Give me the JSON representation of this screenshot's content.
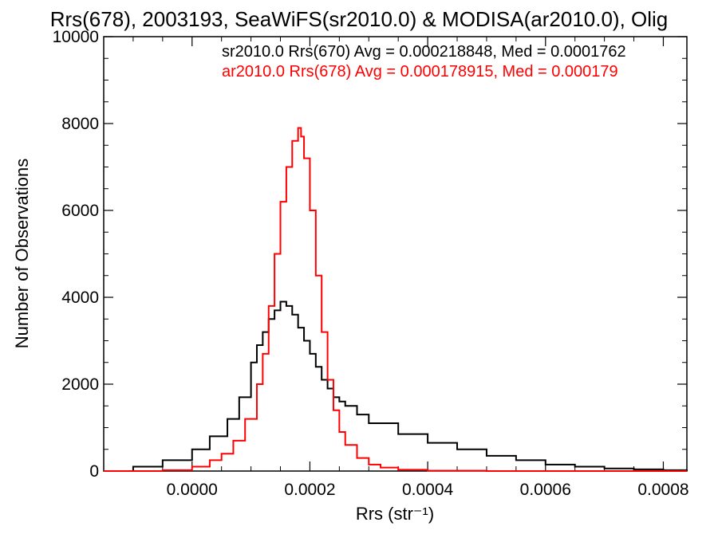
{
  "chart_data": {
    "type": "line",
    "title": "Rrs(678), 2003193, SeaWiFS(sr2010.0) & MODISA(ar2010.0), Olig",
    "xlabel": "Rrs (str⁻¹)",
    "ylabel": "Number of Observations",
    "xlim": [
      -0.00015,
      0.00084
    ],
    "ylim": [
      0,
      10000
    ],
    "grid": false,
    "legend_position": "top-right",
    "x_ticks": [
      {
        "value": 0.0,
        "label": "0.0000"
      },
      {
        "value": 0.0002,
        "label": "0.0002"
      },
      {
        "value": 0.0004,
        "label": "0.0004"
      },
      {
        "value": 0.0006,
        "label": "0.0006"
      },
      {
        "value": 0.0008,
        "label": "0.0008"
      }
    ],
    "y_ticks": [
      {
        "value": 0,
        "label": "0"
      },
      {
        "value": 2000,
        "label": "2000"
      },
      {
        "value": 4000,
        "label": "4000"
      },
      {
        "value": 6000,
        "label": "6000"
      },
      {
        "value": 8000,
        "label": "8000"
      },
      {
        "value": 10000,
        "label": "10000"
      }
    ],
    "annotations": [
      {
        "text": "sr2010.0 Rrs(670) Avg = 0.000218848, Med = 0.0001762",
        "color": "#000000"
      },
      {
        "text": "ar2010.0 Rrs(678) Avg = 0.000178915, Med = 0.000179",
        "color": "#ff0000"
      }
    ],
    "series": [
      {
        "color": "#000000",
        "x": [
          -0.00015,
          -0.0001,
          -5e-05,
          0,
          3e-05,
          6e-05,
          8e-05,
          0.0001,
          0.00011,
          0.00012,
          0.00013,
          0.00014,
          0.00015,
          0.00016,
          0.00017,
          0.00018,
          0.00019,
          0.0002,
          0.00021,
          0.00022,
          0.00023,
          0.00024,
          0.00025,
          0.00026,
          0.00028,
          0.0003,
          0.00035,
          0.0004,
          0.00045,
          0.0005,
          0.00055,
          0.0006,
          0.00065,
          0.0007,
          0.00075,
          0.0008,
          0.00084
        ],
        "values": [
          0,
          100,
          250,
          500,
          800,
          1200,
          1700,
          2500,
          2900,
          3200,
          3500,
          3700,
          3900,
          3800,
          3600,
          3300,
          3000,
          2700,
          2400,
          2100,
          1900,
          1700,
          1600,
          1500,
          1300,
          1100,
          850,
          650,
          500,
          350,
          250,
          150,
          100,
          60,
          40,
          20,
          0
        ]
      },
      {
        "color": "#ff0000",
        "x": [
          -0.00015,
          -5e-05,
          0,
          3e-05,
          5e-05,
          7e-05,
          9e-05,
          0.00011,
          0.00012,
          0.00013,
          0.00014,
          0.00015,
          0.00016,
          0.00017,
          0.00018,
          0.000185,
          0.00019,
          0.0002,
          0.00021,
          0.00022,
          0.00023,
          0.00024,
          0.00025,
          0.00026,
          0.00028,
          0.0003,
          0.00032,
          0.00035,
          0.0004,
          0.0005,
          0.00084
        ],
        "values": [
          0,
          20,
          100,
          250,
          400,
          700,
          1200,
          2000,
          2700,
          3800,
          5000,
          6200,
          7000,
          7600,
          7900,
          7700,
          7200,
          6000,
          4500,
          3200,
          2100,
          1400,
          900,
          600,
          300,
          150,
          80,
          30,
          10,
          0,
          0
        ]
      }
    ]
  }
}
